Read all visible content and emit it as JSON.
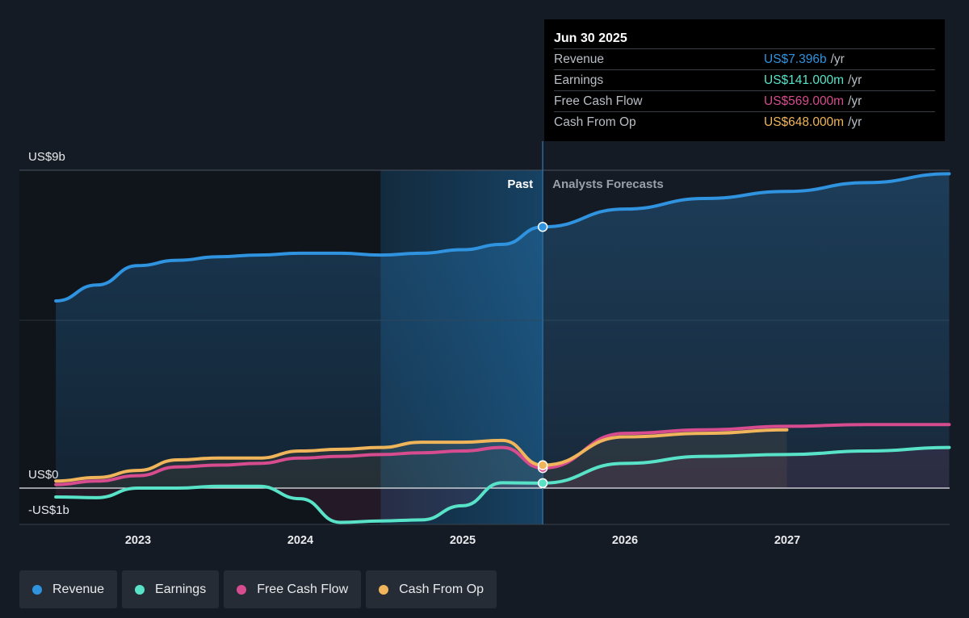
{
  "chart_data": {
    "type": "line",
    "x_ticks": [
      "2023",
      "2024",
      "2025",
      "2026",
      "2027"
    ],
    "y_tick_labels": [
      "US$9b",
      "US$0",
      "-US$1b"
    ],
    "ylim": [
      -1,
      9
    ],
    "divider_labels": {
      "past": "Past",
      "forecast": "Analysts Forecasts"
    },
    "current_date": "2025-06-30",
    "series": [
      {
        "name": "Revenue",
        "color": "#2f93e0",
        "points": [
          [
            "2022-06-30",
            5.3
          ],
          [
            "2022-09-30",
            5.75
          ],
          [
            "2022-12-31",
            6.3
          ],
          [
            "2023-03-31",
            6.45
          ],
          [
            "2023-06-30",
            6.55
          ],
          [
            "2023-09-30",
            6.6
          ],
          [
            "2023-12-31",
            6.65
          ],
          [
            "2024-03-31",
            6.65
          ],
          [
            "2024-06-30",
            6.6
          ],
          [
            "2024-09-30",
            6.65
          ],
          [
            "2024-12-31",
            6.75
          ],
          [
            "2025-03-31",
            6.9
          ],
          [
            "2025-06-30",
            7.396
          ],
          [
            "2025-12-31",
            7.9
          ],
          [
            "2026-06-30",
            8.2
          ],
          [
            "2026-12-31",
            8.4
          ],
          [
            "2027-06-30",
            8.65
          ],
          [
            "2027-12-31",
            8.9
          ]
        ]
      },
      {
        "name": "Earnings",
        "color": "#58e3c8",
        "points": [
          [
            "2022-06-30",
            -0.25
          ],
          [
            "2022-09-30",
            -0.27
          ],
          [
            "2022-12-31",
            0.0
          ],
          [
            "2023-03-31",
            0.0
          ],
          [
            "2023-06-30",
            0.05
          ],
          [
            "2023-09-30",
            0.05
          ],
          [
            "2023-12-31",
            -0.3
          ],
          [
            "2024-03-31",
            -0.97
          ],
          [
            "2024-06-30",
            -0.93
          ],
          [
            "2024-09-30",
            -0.9
          ],
          [
            "2024-12-31",
            -0.5
          ],
          [
            "2025-03-31",
            0.15
          ],
          [
            "2025-06-30",
            0.141
          ],
          [
            "2025-12-31",
            0.7
          ],
          [
            "2026-06-30",
            0.9
          ],
          [
            "2026-12-31",
            0.95
          ],
          [
            "2027-06-30",
            1.05
          ],
          [
            "2027-12-31",
            1.15
          ]
        ]
      },
      {
        "name": "Free Cash Flow",
        "color": "#d64c8e",
        "points": [
          [
            "2022-06-30",
            0.1
          ],
          [
            "2022-09-30",
            0.2
          ],
          [
            "2022-12-31",
            0.35
          ],
          [
            "2023-03-31",
            0.6
          ],
          [
            "2023-06-30",
            0.65
          ],
          [
            "2023-09-30",
            0.7
          ],
          [
            "2023-12-31",
            0.85
          ],
          [
            "2024-03-31",
            0.9
          ],
          [
            "2024-06-30",
            0.95
          ],
          [
            "2024-09-30",
            1.0
          ],
          [
            "2024-12-31",
            1.05
          ],
          [
            "2025-03-31",
            1.15
          ],
          [
            "2025-06-30",
            0.569
          ],
          [
            "2025-12-31",
            1.55
          ],
          [
            "2026-06-30",
            1.65
          ],
          [
            "2026-12-31",
            1.75
          ],
          [
            "2027-06-30",
            1.8
          ],
          [
            "2027-12-31",
            1.8
          ]
        ]
      },
      {
        "name": "Cash From Op",
        "color": "#f0b55a",
        "points": [
          [
            "2022-06-30",
            0.2
          ],
          [
            "2022-09-30",
            0.3
          ],
          [
            "2022-12-31",
            0.5
          ],
          [
            "2023-03-31",
            0.8
          ],
          [
            "2023-06-30",
            0.85
          ],
          [
            "2023-09-30",
            0.85
          ],
          [
            "2023-12-31",
            1.05
          ],
          [
            "2024-03-31",
            1.1
          ],
          [
            "2024-06-30",
            1.15
          ],
          [
            "2024-09-30",
            1.3
          ],
          [
            "2024-12-31",
            1.3
          ],
          [
            "2025-03-31",
            1.35
          ],
          [
            "2025-06-30",
            0.648
          ],
          [
            "2025-12-31",
            1.45
          ],
          [
            "2026-06-30",
            1.55
          ],
          [
            "2026-12-31",
            1.65
          ]
        ]
      }
    ]
  },
  "tooltip": {
    "date": "Jun 30 2025",
    "rows": [
      {
        "label": "Revenue",
        "value": "US$7.396b",
        "unit": "/yr",
        "color": "#2f93e0"
      },
      {
        "label": "Earnings",
        "value": "US$141.000m",
        "unit": "/yr",
        "color": "#58e3c8"
      },
      {
        "label": "Free Cash Flow",
        "value": "US$569.000m",
        "unit": "/yr",
        "color": "#d64c8e"
      },
      {
        "label": "Cash From Op",
        "value": "US$648.000m",
        "unit": "/yr",
        "color": "#f0b55a"
      }
    ]
  },
  "legend": [
    {
      "label": "Revenue",
      "color": "#2f93e0"
    },
    {
      "label": "Earnings",
      "color": "#58e3c8"
    },
    {
      "label": "Free Cash Flow",
      "color": "#d64c8e"
    },
    {
      "label": "Cash From Op",
      "color": "#f0b55a"
    }
  ]
}
